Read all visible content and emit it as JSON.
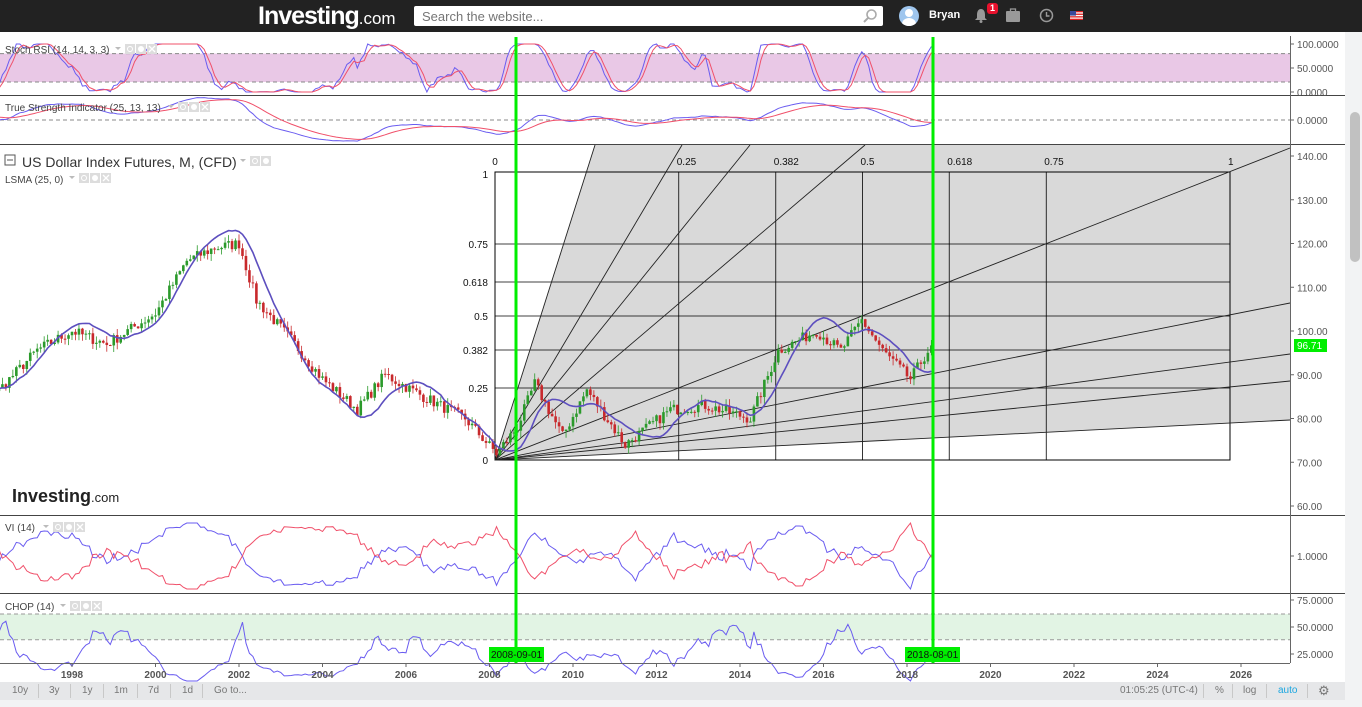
{
  "header": {
    "logo": "Investing",
    "logo_suffix": ".com",
    "search_placeholder": "Search the website...",
    "user_name": "Bryan",
    "notification_count": "1",
    "icons": [
      "search-icon",
      "avatar",
      "bell-icon",
      "briefcase-icon",
      "clock-icon",
      "us-flag-icon"
    ]
  },
  "panels": {
    "stoch": {
      "label": "Stoch RSI (14, 14, 3, 3)",
      "ticks": [
        "100.0000",
        "50.0000",
        "0.0000"
      ],
      "band_color": "#e9c8e6"
    },
    "tsi": {
      "label": "True Strength Indicator (25, 13, 13)",
      "ticks": [
        "0.0000"
      ]
    },
    "main": {
      "label": "US Dollar Index Futures, M, (CFD)",
      "overlay_label": "LSMA (25, 0)",
      "watermark": "Investing",
      "watermark_suffix": ".com",
      "last_price": "96.71",
      "ticks": [
        "140.00",
        "130.00",
        "120.00",
        "110.00",
        "100.00",
        "90.00",
        "80.00",
        "70.00",
        "60.00"
      ]
    },
    "vi": {
      "label": "VI (14)",
      "ticks": [
        "1.0000"
      ]
    },
    "chop": {
      "label": "CHOP (14)",
      "ticks": [
        "75.0000",
        "50.0000",
        "25.0000"
      ],
      "band_color": "#e2f4e4"
    }
  },
  "time_axis": {
    "ticks": [
      "1998",
      "2000",
      "2002",
      "2004",
      "2006",
      "2008",
      "2010",
      "2012",
      "2014",
      "2016",
      "2018",
      "2020",
      "2022",
      "2024",
      "2026"
    ],
    "markers": [
      "2008-09-01",
      "2018-08-01"
    ],
    "marker_color": "#00ee00"
  },
  "gann_box": {
    "top_labels": [
      "0",
      "0.25",
      "0.382",
      "0.5",
      "0.618",
      "0.75",
      "1"
    ],
    "left_labels": [
      "1",
      "0.75",
      "0.618",
      "0.5",
      "0.382",
      "0.25",
      "0"
    ]
  },
  "toolbar": {
    "ranges": [
      "10y",
      "3y",
      "1y",
      "1m",
      "7d",
      "1d",
      "Go to..."
    ],
    "clock": "01:05:25 (UTC-4)",
    "percent": "%",
    "log": "log",
    "auto": "auto"
  },
  "chart_data": {
    "type": "candlestick",
    "title": "US Dollar Index Futures, M, (CFD)",
    "interval": "monthly",
    "ylim": [
      55,
      143
    ],
    "xlim": [
      "1996-04",
      "2027-03"
    ],
    "approx_close_path": [
      [
        "1995-01",
        88
      ],
      [
        "1996-04",
        86.5
      ],
      [
        "1997-03",
        95.6
      ],
      [
        "1998-01",
        100
      ],
      [
        "1998-11",
        97
      ],
      [
        "2000-01",
        104
      ],
      [
        "2000-10",
        116
      ],
      [
        "2001-06",
        119
      ],
      [
        "2002-01",
        120
      ],
      [
        "2002-06",
        107
      ],
      [
        "2003-04",
        98
      ],
      [
        "2004-01",
        89
      ],
      [
        "2004-11",
        82
      ],
      [
        "2005-07",
        90
      ],
      [
        "2006-06",
        85
      ],
      [
        "2007-06",
        80
      ],
      [
        "2008-03",
        72
      ],
      [
        "2008-09",
        78
      ],
      [
        "2009-02",
        88
      ],
      [
        "2009-10",
        76
      ],
      [
        "2010-05",
        86.5
      ],
      [
        "2011-04",
        74
      ],
      [
        "2012-05",
        82
      ],
      [
        "2013-03",
        83
      ],
      [
        "2014-04",
        80
      ],
      [
        "2014-12",
        95.5
      ],
      [
        "2015-11",
        100
      ],
      [
        "2016-06",
        95.5
      ],
      [
        "2016-12",
        102.5
      ],
      [
        "2017-06",
        95.5
      ],
      [
        "2018-02",
        89
      ],
      [
        "2018-08",
        96.71
      ]
    ],
    "overlay": "LSMA (25, 0)",
    "grid": false
  }
}
